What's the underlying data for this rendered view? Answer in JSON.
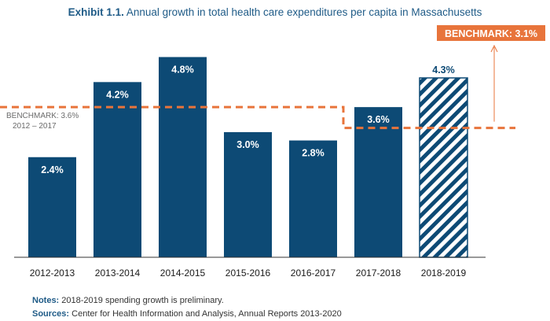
{
  "chart_data": {
    "type": "bar",
    "title_bold": "Exhibit 1.1.",
    "title": "Annual growth in total health care expenditures per capita in Massachusetts",
    "categories": [
      "2012-2013",
      "2013-2014",
      "2014-2015",
      "2015-2016",
      "2016-2017",
      "2017-2018",
      "2018-2019"
    ],
    "values": [
      2.4,
      4.2,
      4.8,
      3.0,
      2.8,
      3.6,
      4.3
    ],
    "value_labels": [
      "2.4%",
      "4.2%",
      "4.8%",
      "3.0%",
      "2.8%",
      "3.6%",
      "4.3%"
    ],
    "preliminary_index": 6,
    "ylim": [
      0,
      5.3
    ],
    "benchmarks": [
      {
        "value": 3.6,
        "from_category": 0,
        "to_category": 4,
        "label_line1": "BENCHMARK: 3.6%",
        "label_line2": "2012 – 2017"
      },
      {
        "value": 3.1,
        "from_category": 5,
        "to_category": 6,
        "label": "BENCHMARK: 3.1%"
      }
    ],
    "colors": {
      "bar": "#0d4a75",
      "benchmark": "#e8743b",
      "text": "#1a1a1a",
      "title": "#1f5b87"
    }
  },
  "notes": {
    "label": "Notes:",
    "text": "2018-2019 spending growth is preliminary."
  },
  "sources": {
    "label": "Sources:",
    "text": "Center for Health Information and Analysis, Annual Reports 2013-2020"
  }
}
